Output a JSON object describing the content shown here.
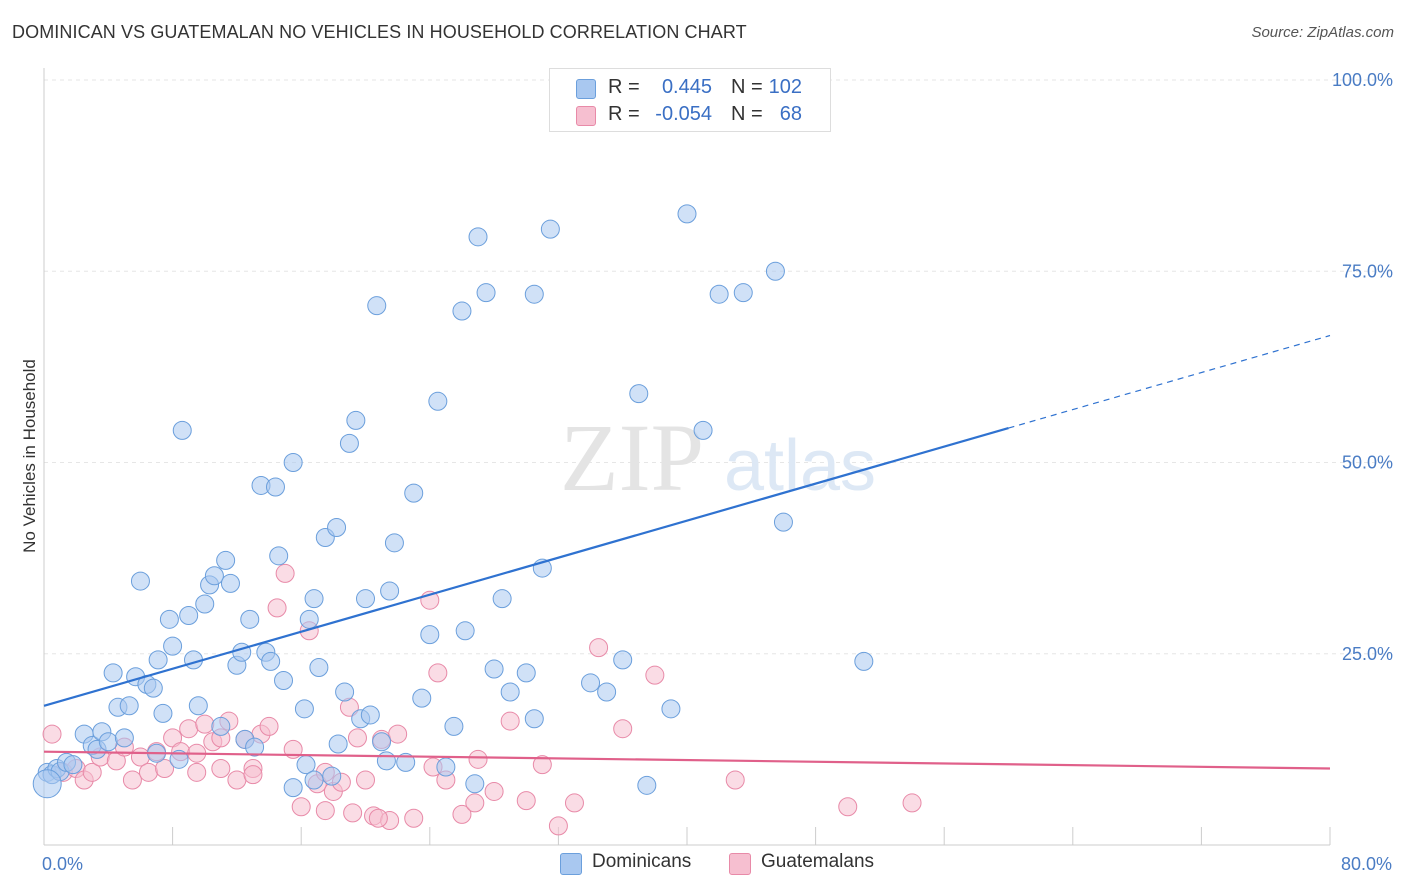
{
  "title": "DOMINICAN VS GUATEMALAN NO VEHICLES IN HOUSEHOLD CORRELATION CHART",
  "source": "Source: ZipAtlas.com",
  "watermark": {
    "zip": "ZIP",
    "atlas": "atlas"
  },
  "legend": {
    "rows": [
      {
        "r_label": "R =",
        "r_value": "0.445",
        "n_label": "N =",
        "n_value": "102",
        "color": "#a9c8f0",
        "border": "#6b9fdc"
      },
      {
        "r_label": "R =",
        "r_value": "-0.054",
        "n_label": "N =",
        "n_value": "68",
        "color": "#f6bfd0",
        "border": "#e88aa8"
      }
    ]
  },
  "bottom_legend": [
    {
      "label": "Dominicans",
      "color": "#a9c8f0",
      "border": "#6b9fdc"
    },
    {
      "label": "Guatemalans",
      "color": "#f6bfd0",
      "border": "#e88aa8"
    }
  ],
  "chart_data": {
    "type": "scatter",
    "title": "DOMINICAN VS GUATEMALAN NO VEHICLES IN HOUSEHOLD CORRELATION CHART",
    "xlabel": "",
    "ylabel": "No Vehicles in Household",
    "xlim": [
      0,
      80
    ],
    "ylim": [
      0,
      100
    ],
    "x_tick_labels": [
      {
        "value": 0,
        "label": "0.0%"
      },
      {
        "value": 80,
        "label": "80.0%"
      }
    ],
    "y_tick_labels": [
      {
        "value": 25,
        "label": "25.0%"
      },
      {
        "value": 50,
        "label": "50.0%"
      },
      {
        "value": 75,
        "label": "75.0%"
      },
      {
        "value": 100,
        "label": "100.0%"
      }
    ],
    "grid": true,
    "legend_position": "top-center",
    "series": [
      {
        "name": "Dominicans",
        "color": "#6b9fdc",
        "fill": "#a9c8f0",
        "trend": {
          "x": [
            0,
            60
          ],
          "y": [
            18.2,
            54.5
          ],
          "dashed_to": {
            "x": 80,
            "y": 66.6
          }
        },
        "points": [
          [
            0.2,
            9.5
          ],
          [
            0.5,
            9.2
          ],
          [
            0.8,
            10.0
          ],
          [
            1.0,
            9.6
          ],
          [
            1.4,
            10.8
          ],
          [
            1.8,
            10.5
          ],
          [
            2.5,
            14.5
          ],
          [
            3.0,
            13.0
          ],
          [
            3.3,
            12.5
          ],
          [
            3.6,
            14.8
          ],
          [
            4.0,
            13.5
          ],
          [
            4.3,
            22.5
          ],
          [
            4.6,
            18.0
          ],
          [
            5.0,
            14.0
          ],
          [
            5.3,
            18.2
          ],
          [
            5.7,
            22.0
          ],
          [
            6.0,
            34.5
          ],
          [
            6.4,
            21.0
          ],
          [
            6.8,
            20.5
          ],
          [
            7.1,
            24.2
          ],
          [
            7.4,
            17.2
          ],
          [
            7.8,
            29.5
          ],
          [
            8.0,
            26.0
          ],
          [
            8.4,
            11.2
          ],
          [
            8.6,
            54.2
          ],
          [
            9.0,
            30.0
          ],
          [
            9.3,
            24.2
          ],
          [
            9.6,
            18.2
          ],
          [
            10.0,
            31.5
          ],
          [
            10.3,
            34.0
          ],
          [
            10.6,
            35.2
          ],
          [
            11.0,
            15.5
          ],
          [
            11.3,
            37.2
          ],
          [
            11.6,
            34.2
          ],
          [
            12.0,
            23.5
          ],
          [
            12.3,
            25.2
          ],
          [
            12.5,
            13.8
          ],
          [
            12.8,
            29.5
          ],
          [
            13.1,
            12.8
          ],
          [
            13.5,
            47.0
          ],
          [
            13.8,
            25.2
          ],
          [
            14.1,
            24.0
          ],
          [
            14.4,
            46.8
          ],
          [
            14.6,
            37.8
          ],
          [
            14.9,
            21.5
          ],
          [
            15.5,
            50.0
          ],
          [
            15.5,
            7.5
          ],
          [
            16.2,
            17.8
          ],
          [
            16.5,
            29.5
          ],
          [
            16.8,
            32.2
          ],
          [
            17.1,
            23.2
          ],
          [
            17.5,
            40.2
          ],
          [
            17.9,
            9.0
          ],
          [
            18.2,
            41.5
          ],
          [
            18.3,
            13.2
          ],
          [
            18.7,
            20.0
          ],
          [
            19.0,
            52.5
          ],
          [
            19.4,
            55.5
          ],
          [
            19.7,
            16.5
          ],
          [
            20.0,
            32.2
          ],
          [
            20.3,
            17.0
          ],
          [
            20.7,
            70.5
          ],
          [
            21.0,
            13.5
          ],
          [
            21.5,
            33.2
          ],
          [
            21.8,
            39.5
          ],
          [
            22.5,
            10.8
          ],
          [
            23.0,
            46.0
          ],
          [
            23.5,
            19.2
          ],
          [
            24.0,
            27.5
          ],
          [
            24.5,
            58.0
          ],
          [
            25.0,
            10.2
          ],
          [
            25.5,
            15.5
          ],
          [
            26.0,
            69.8
          ],
          [
            26.2,
            28.0
          ],
          [
            27.0,
            79.5
          ],
          [
            27.5,
            72.2
          ],
          [
            28.0,
            23.0
          ],
          [
            28.5,
            32.2
          ],
          [
            29.0,
            20.0
          ],
          [
            30.0,
            22.5
          ],
          [
            30.5,
            72.0
          ],
          [
            31.0,
            36.2
          ],
          [
            31.5,
            80.5
          ],
          [
            34.0,
            21.2
          ],
          [
            35.0,
            20.0
          ],
          [
            36.0,
            24.2
          ],
          [
            37.0,
            59.0
          ],
          [
            37.5,
            7.8
          ],
          [
            39.0,
            17.8
          ],
          [
            40.0,
            82.5
          ],
          [
            41.0,
            54.2
          ],
          [
            42.0,
            72.0
          ],
          [
            43.5,
            72.2
          ],
          [
            45.5,
            75.0
          ],
          [
            46.0,
            42.2
          ],
          [
            51.0,
            24.0
          ],
          [
            16.3,
            10.5
          ],
          [
            21.3,
            11.0
          ],
          [
            16.8,
            8.5
          ],
          [
            26.8,
            8.0
          ],
          [
            30.5,
            16.5
          ],
          [
            7.0,
            12.0
          ]
        ]
      },
      {
        "name": "Guatemalans",
        "color": "#e88aa8",
        "fill": "#f6bfd0",
        "trend": {
          "x": [
            0,
            80
          ],
          "y": [
            12.2,
            10.0
          ]
        },
        "points": [
          [
            0.5,
            14.5
          ],
          [
            1.2,
            9.5
          ],
          [
            2.0,
            10.0
          ],
          [
            2.5,
            8.5
          ],
          [
            3.0,
            9.5
          ],
          [
            3.5,
            11.5
          ],
          [
            4.5,
            11.0
          ],
          [
            5.0,
            12.8
          ],
          [
            5.5,
            8.5
          ],
          [
            6.0,
            11.5
          ],
          [
            6.5,
            9.5
          ],
          [
            7.0,
            12.2
          ],
          [
            7.5,
            10.0
          ],
          [
            8.0,
            14.0
          ],
          [
            8.5,
            12.2
          ],
          [
            9.0,
            15.2
          ],
          [
            9.5,
            12.0
          ],
          [
            10.0,
            15.8
          ],
          [
            10.5,
            13.5
          ],
          [
            11.0,
            14.0
          ],
          [
            11.5,
            16.2
          ],
          [
            12.0,
            8.5
          ],
          [
            12.5,
            13.8
          ],
          [
            13.0,
            10.0
          ],
          [
            13.5,
            14.5
          ],
          [
            14.0,
            15.5
          ],
          [
            14.5,
            31.0
          ],
          [
            15.0,
            35.5
          ],
          [
            15.5,
            12.5
          ],
          [
            16.0,
            5.0
          ],
          [
            16.5,
            28.0
          ],
          [
            17.0,
            8.0
          ],
          [
            17.5,
            9.5
          ],
          [
            18.0,
            7.0
          ],
          [
            18.5,
            8.2
          ],
          [
            19.0,
            18.0
          ],
          [
            19.5,
            14.0
          ],
          [
            20.0,
            8.5
          ],
          [
            20.5,
            3.8
          ],
          [
            21.0,
            13.8
          ],
          [
            21.5,
            3.2
          ],
          [
            22.0,
            14.5
          ],
          [
            23.0,
            3.5
          ],
          [
            24.0,
            32.0
          ],
          [
            24.5,
            22.5
          ],
          [
            25.0,
            8.5
          ],
          [
            26.0,
            4.0
          ],
          [
            27.0,
            11.2
          ],
          [
            28.0,
            7.0
          ],
          [
            29.0,
            16.2
          ],
          [
            30.0,
            5.8
          ],
          [
            31.0,
            10.5
          ],
          [
            32.0,
            2.5
          ],
          [
            33.0,
            5.5
          ],
          [
            34.5,
            25.8
          ],
          [
            36.0,
            15.2
          ],
          [
            38.0,
            22.2
          ],
          [
            43.0,
            8.5
          ],
          [
            50.0,
            5.0
          ],
          [
            54.0,
            5.5
          ],
          [
            9.5,
            9.5
          ],
          [
            11.0,
            10.0
          ],
          [
            13.0,
            9.2
          ],
          [
            17.5,
            4.5
          ],
          [
            19.2,
            4.2
          ],
          [
            20.8,
            3.5
          ],
          [
            24.2,
            10.2
          ],
          [
            26.8,
            5.5
          ]
        ]
      }
    ]
  }
}
